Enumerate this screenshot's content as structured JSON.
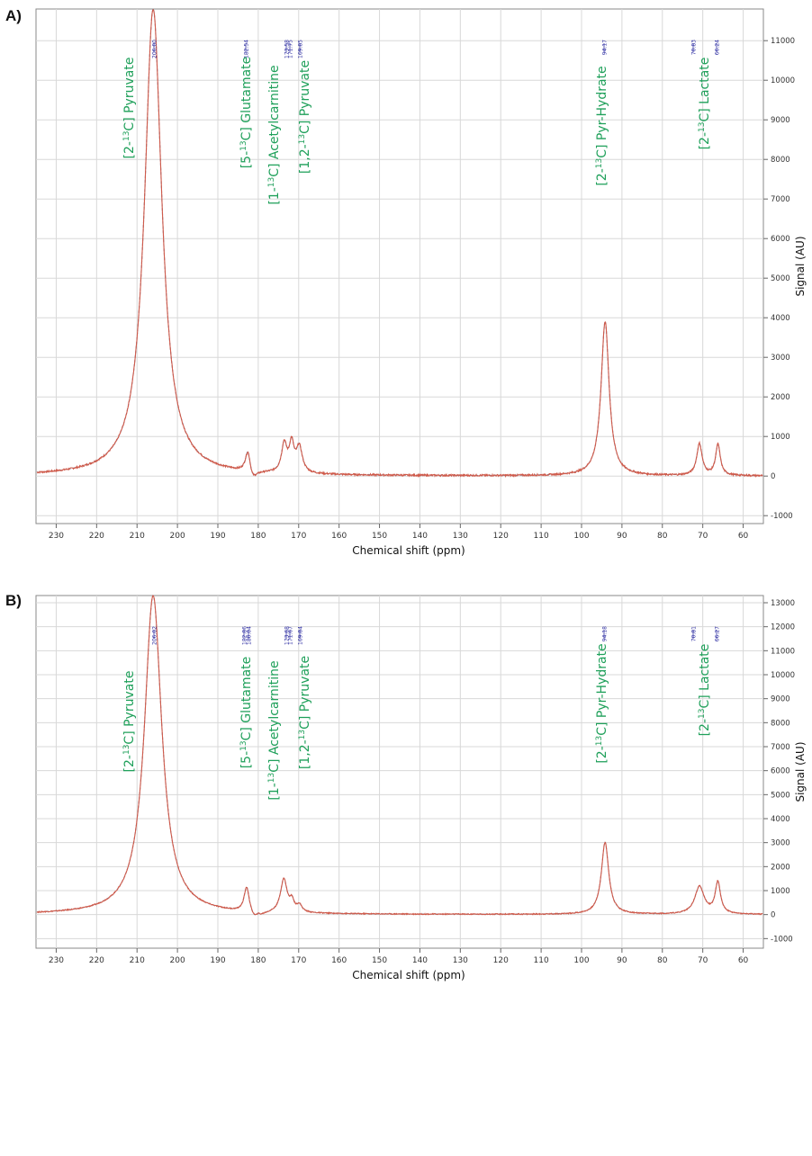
{
  "chart_data": [
    {
      "type": "line",
      "panel_label": "A)",
      "xlabel": "Chemical shift (ppm)",
      "ylabel": "Signal (AU)",
      "xlim": [
        235,
        55
      ],
      "ylim": [
        -1200,
        11800
      ],
      "x_axis_reversed": true,
      "grid": true,
      "x_ticks": [
        230,
        220,
        210,
        200,
        190,
        180,
        170,
        160,
        150,
        140,
        130,
        120,
        110,
        100,
        90,
        80,
        70,
        60
      ],
      "y_ticks": [
        -1000,
        0,
        1000,
        2000,
        3000,
        4000,
        5000,
        6000,
        7000,
        8000,
        9000,
        10000,
        11000
      ],
      "series_colors": {
        "spectrum": "#d05a4a",
        "fit": "#6a7a9a"
      },
      "annotation_color": "#1fa05a",
      "peak_label_color": "#2a2aa0",
      "peak_labels": [
        "206.00",
        "182.54",
        "173.58",
        "171.75",
        "169.85",
        "94.17",
        "70.83",
        "66.24"
      ],
      "annotations": [
        {
          "prefix": "[2-",
          "sup": "13",
          "suffix": "C] Pyruvate"
        },
        {
          "prefix": "[5-",
          "sup": "13",
          "suffix": "C] Glutamate"
        },
        {
          "prefix": "[1-",
          "sup": "13",
          "suffix": "C] Acetylcarnitine"
        },
        {
          "prefix": "[1,2-",
          "sup": "13",
          "suffix": "C] Pyruvate"
        },
        {
          "prefix": "[2-",
          "sup": "13",
          "suffix": "C] Pyr-Hydrate"
        },
        {
          "prefix": "[2-",
          "sup": "13",
          "suffix": "C] Lactate"
        }
      ],
      "peaks": [
        {
          "ppm": 206.0,
          "height": 11800,
          "width": 2.6
        },
        {
          "ppm": 182.54,
          "height": 620,
          "width": 0.8
        },
        {
          "ppm": 173.58,
          "height": 720,
          "width": 0.8
        },
        {
          "ppm": 171.75,
          "height": 700,
          "width": 0.7
        },
        {
          "ppm": 169.85,
          "height": 650,
          "width": 0.9
        },
        {
          "ppm": 94.17,
          "height": 3900,
          "width": 1.2
        },
        {
          "ppm": 70.83,
          "height": 800,
          "width": 0.8
        },
        {
          "ppm": 66.24,
          "height": 780,
          "width": 0.7
        }
      ],
      "dips": [
        {
          "ppm": 181.5,
          "depth": -280,
          "width": 1.3
        }
      ]
    },
    {
      "type": "line",
      "panel_label": "B)",
      "xlabel": "Chemical shift (ppm)",
      "ylabel": "Signal (AU)",
      "xlim": [
        235,
        55
      ],
      "ylim": [
        -1400,
        13300
      ],
      "x_axis_reversed": true,
      "grid": true,
      "x_ticks": [
        230,
        220,
        210,
        200,
        190,
        180,
        170,
        160,
        150,
        140,
        130,
        120,
        110,
        100,
        90,
        80,
        70,
        60
      ],
      "y_ticks": [
        -1000,
        0,
        1000,
        2000,
        3000,
        4000,
        5000,
        6000,
        7000,
        8000,
        9000,
        10000,
        11000,
        12000,
        13000
      ],
      "series_colors": {
        "spectrum": "#d05a4a",
        "fit": "#6a7a9a"
      },
      "annotation_color": "#1fa05a",
      "peak_label_color": "#2a2aa0",
      "peak_labels": [
        "206.02",
        "182.86",
        "180.04",
        "173.68",
        "171.67",
        "169.84",
        "94.18",
        "70.81",
        "66.27"
      ],
      "annotations": [
        {
          "prefix": "[2-",
          "sup": "13",
          "suffix": "C] Pyruvate"
        },
        {
          "prefix": "[5-",
          "sup": "13",
          "suffix": "C] Glutamate"
        },
        {
          "prefix": "[1-",
          "sup": "13",
          "suffix": "C] Acetylcarnitine"
        },
        {
          "prefix": "[1,2-",
          "sup": "13",
          "suffix": "C] Pyruvate"
        },
        {
          "prefix": "[2-",
          "sup": "13",
          "suffix": "C] Pyr-Hydrate"
        },
        {
          "prefix": "[2-",
          "sup": "13",
          "suffix": "C] Lactate"
        }
      ],
      "peaks": [
        {
          "ppm": 206.02,
          "height": 13300,
          "width": 2.6
        },
        {
          "ppm": 182.86,
          "height": 1100,
          "width": 0.8
        },
        {
          "ppm": 180.04,
          "height": 150,
          "width": 0.6
        },
        {
          "ppm": 173.68,
          "height": 1400,
          "width": 1.0
        },
        {
          "ppm": 171.67,
          "height": 420,
          "width": 0.6
        },
        {
          "ppm": 169.84,
          "height": 300,
          "width": 0.8
        },
        {
          "ppm": 94.18,
          "height": 3000,
          "width": 1.1
        },
        {
          "ppm": 70.81,
          "height": 1150,
          "width": 1.4
        },
        {
          "ppm": 66.27,
          "height": 1300,
          "width": 0.8
        }
      ],
      "dips": [
        {
          "ppm": 180.6,
          "depth": -380,
          "width": 1.8
        }
      ]
    }
  ]
}
